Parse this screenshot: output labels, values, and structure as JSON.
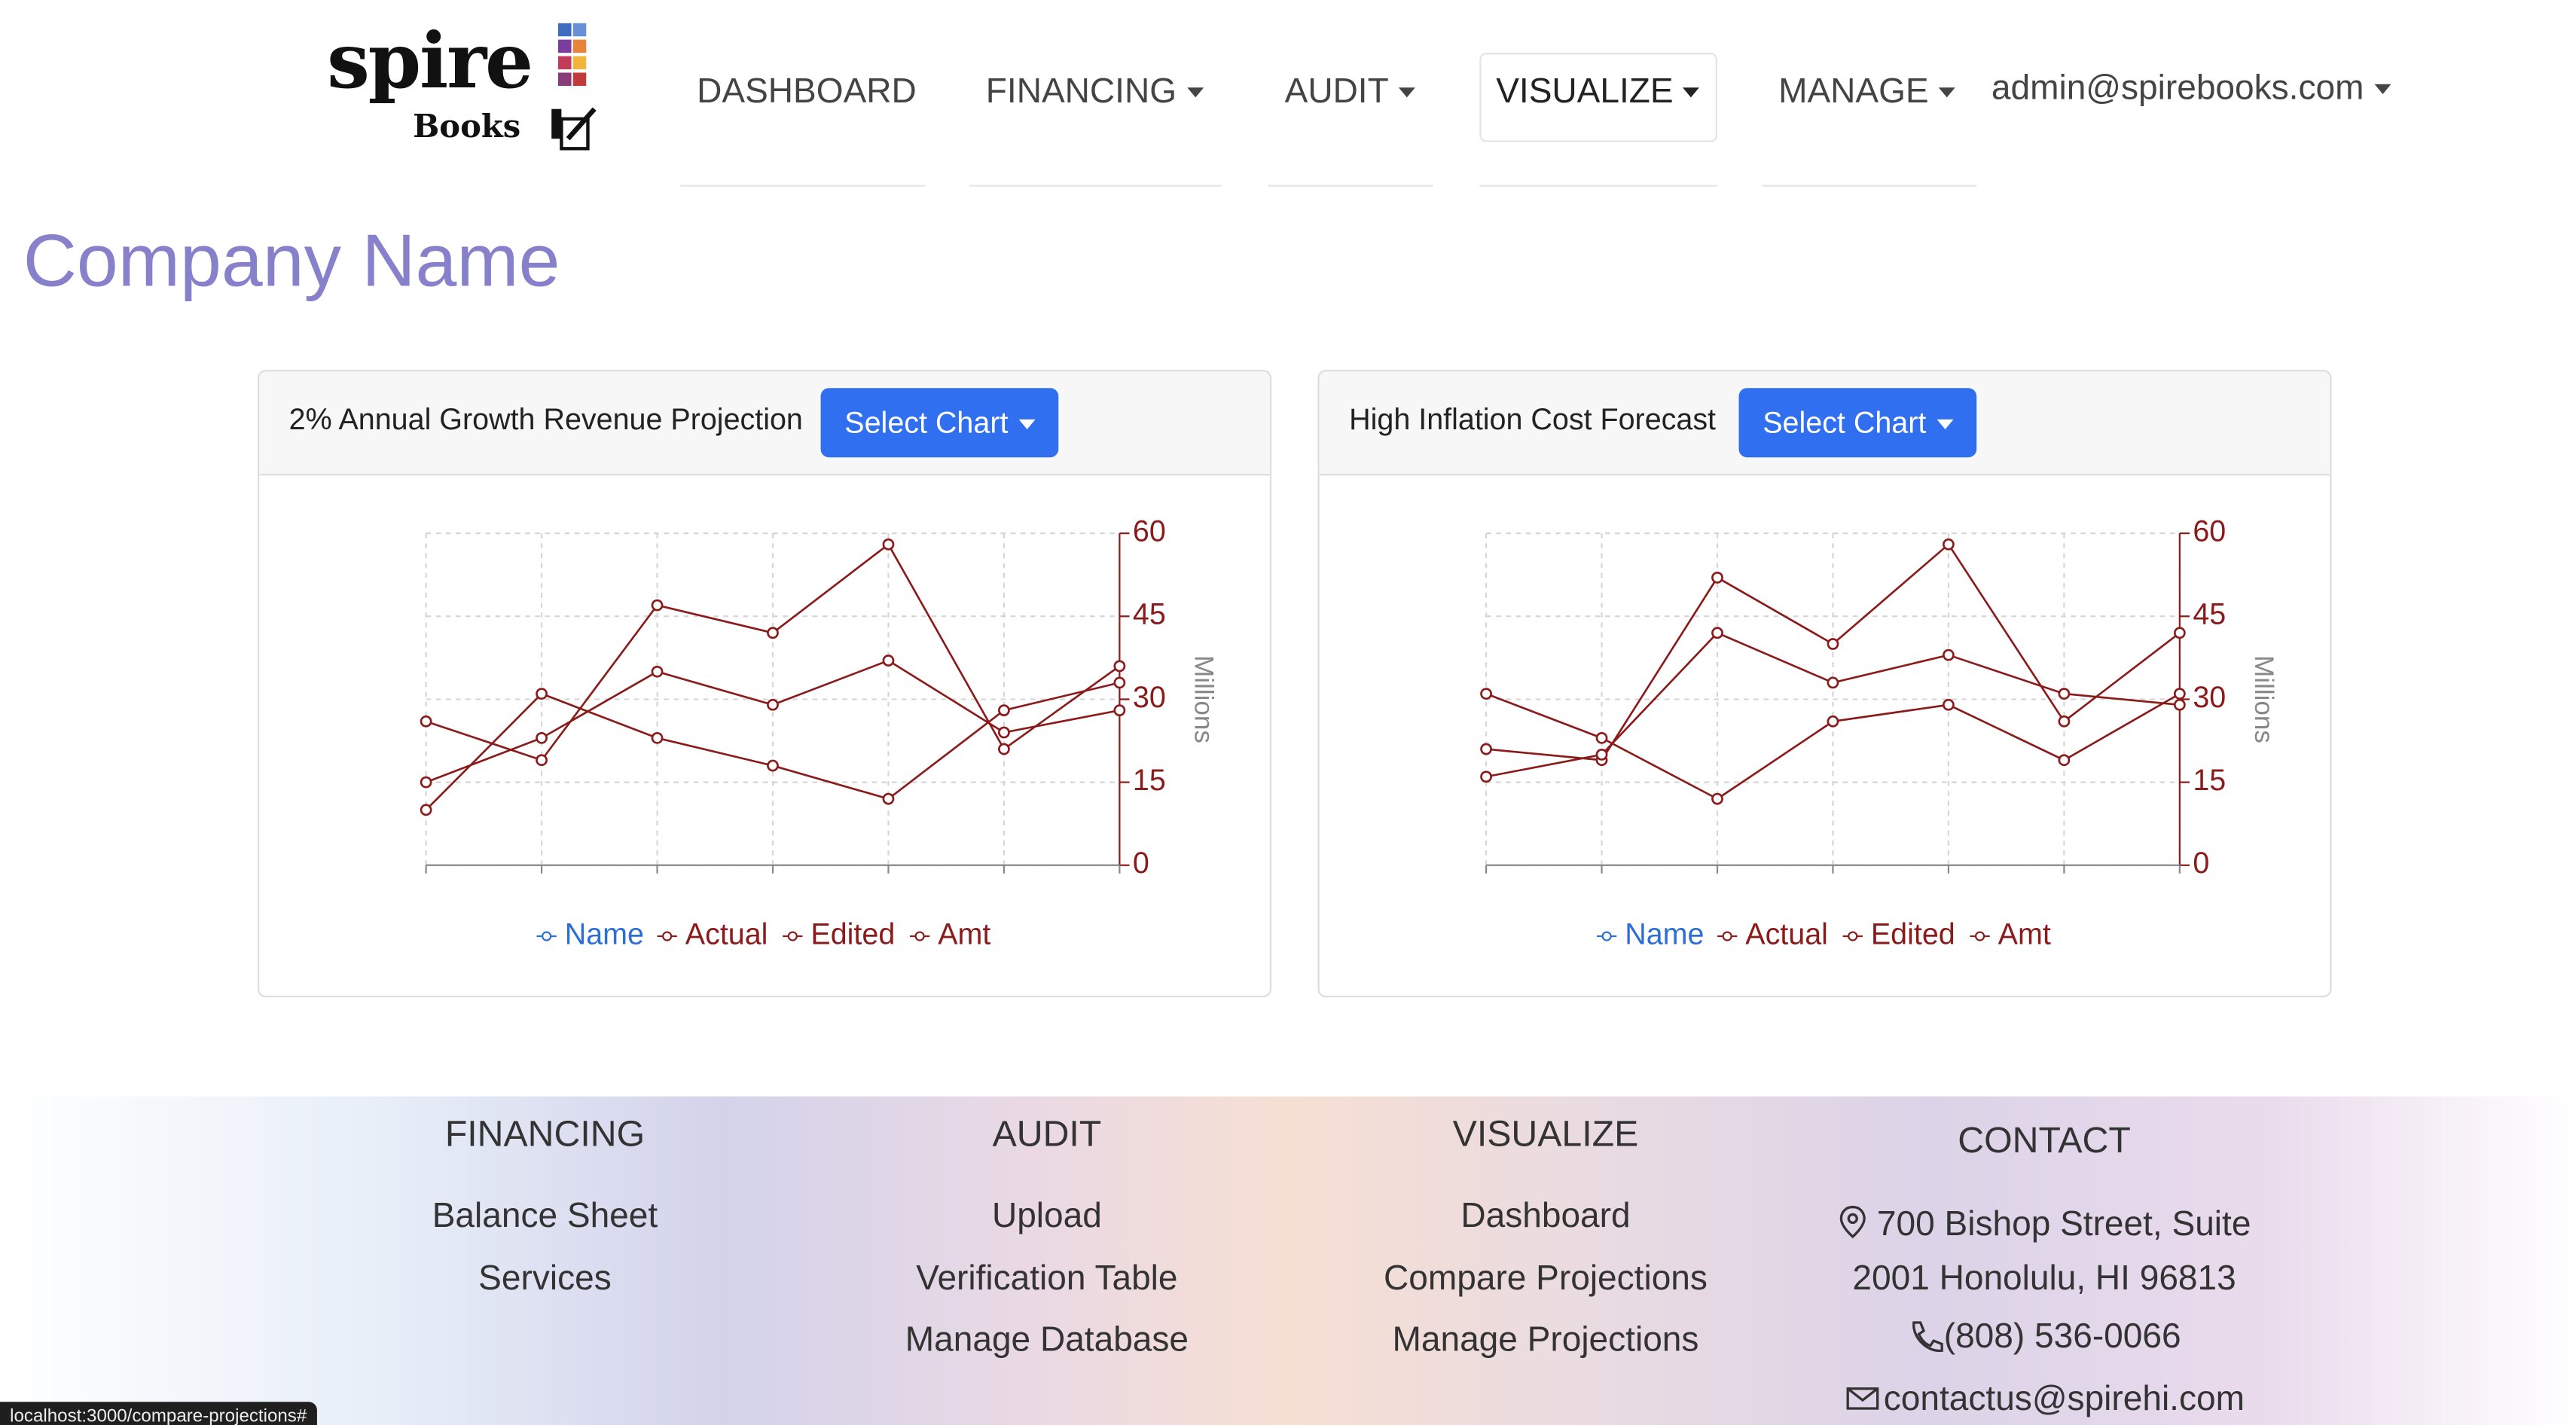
{
  "logo": {
    "word": "spire",
    "sub": "Books"
  },
  "nav": [
    "DASHBOARD",
    "FINANCING",
    "AUDIT",
    "VISUALIZE",
    "MANAGE",
    "admin@spirebooks.com"
  ],
  "page_title": "Company Name",
  "panel_buttons": [
    "Select Chart",
    "Select Chart"
  ],
  "chart_data": [
    {
      "type": "line",
      "title": "2% Annual Growth Revenue Projection",
      "y_label": "Millions",
      "categories": [
        null,
        null,
        null,
        null,
        null,
        null,
        null
      ],
      "ylim": [
        0,
        60
      ],
      "yticks": [
        0,
        15,
        30,
        45,
        60
      ],
      "grid": true,
      "y_axis_side": "right",
      "series": [
        {
          "name": "Name",
          "color": "#2b6fd6",
          "values": [
            null,
            null,
            null,
            null,
            null,
            null,
            null
          ]
        },
        {
          "name": "Actual",
          "color": "#8b1a1a",
          "values": [
            26,
            19,
            47,
            42,
            58,
            21,
            36
          ]
        },
        {
          "name": "Edited",
          "color": "#8b1a1a",
          "values": [
            15,
            23,
            35,
            29,
            37,
            24,
            28
          ]
        },
        {
          "name": "Amt",
          "color": "#8b1a1a",
          "values": [
            10,
            31,
            23,
            18,
            12,
            28,
            33
          ]
        }
      ]
    },
    {
      "type": "line",
      "title": "High Inflation Cost Forecast",
      "y_label": "Millions",
      "categories": [
        null,
        null,
        null,
        null,
        null,
        null,
        null
      ],
      "ylim": [
        0,
        60
      ],
      "yticks": [
        0,
        15,
        30,
        45,
        60
      ],
      "grid": true,
      "y_axis_side": "right",
      "series": [
        {
          "name": "Name",
          "color": "#2b6fd6",
          "values": [
            null,
            null,
            null,
            null,
            null,
            null,
            null
          ]
        },
        {
          "name": "Actual",
          "color": "#8b1a1a",
          "values": [
            21,
            19,
            52,
            40,
            58,
            26,
            42
          ]
        },
        {
          "name": "Edited",
          "color": "#8b1a1a",
          "values": [
            16,
            20,
            42,
            33,
            38,
            31,
            29
          ]
        },
        {
          "name": "Amt",
          "color": "#8b1a1a",
          "values": [
            31,
            23,
            12,
            26,
            29,
            19,
            31
          ]
        }
      ]
    }
  ],
  "footer": [
    {
      "heading": "FINANCING",
      "links": [
        "Balance Sheet",
        "Services"
      ]
    },
    {
      "heading": "AUDIT",
      "links": [
        "Upload",
        "Verification Table",
        "Manage Database"
      ]
    },
    {
      "heading": "VISUALIZE",
      "links": [
        "Dashboard",
        "Compare Projections",
        "Manage Projections"
      ]
    },
    {
      "heading": "CONTACT",
      "links": [
        "700 Bishop Street, Suite",
        "2001 Honolulu, HI 96813",
        "(808) 536-0066",
        "contactus@spirehi.com"
      ]
    }
  ],
  "status_url": "localhost:3000/compare-projections#"
}
